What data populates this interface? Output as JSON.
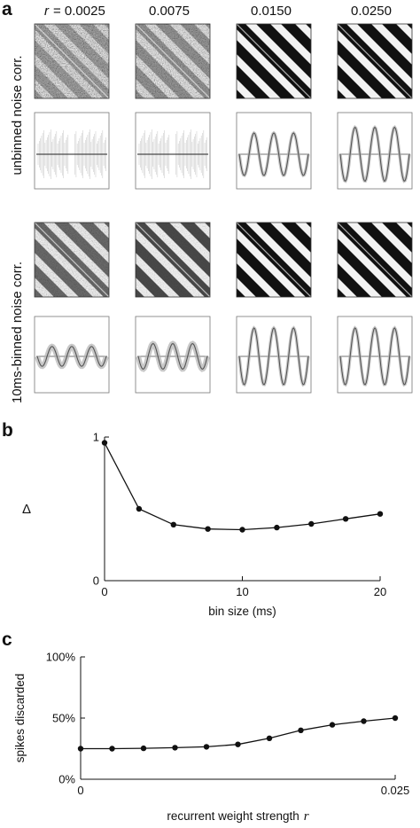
{
  "panel_a": {
    "letter": "a",
    "r_prefix": "r",
    "r_values": [
      "= 0.0025",
      "0.0075",
      "0.0150",
      "0.0250"
    ],
    "row_labels": [
      "unbinned noise corr.",
      "10ms-binned noise corr."
    ],
    "matrix_contrast": [
      [
        0.05,
        0.12,
        0.85,
        1.0
      ],
      [
        0.35,
        0.5,
        1.0,
        1.0
      ]
    ],
    "profile_amplitude": [
      [
        0.0,
        0.0,
        0.75,
        0.95
      ],
      [
        0.35,
        0.45,
        1.0,
        1.0
      ]
    ],
    "colors": {
      "matrix_light": "#f2f2f2",
      "matrix_dark": "#111111",
      "trace": "#555555",
      "trace_band": "#b0b0b0"
    }
  },
  "chart_data": [
    {
      "type": "line",
      "panel": "b",
      "x": [
        0,
        2.5,
        5,
        7.5,
        10,
        12.5,
        15,
        17.5,
        20
      ],
      "y": [
        0.96,
        0.5,
        0.39,
        0.36,
        0.355,
        0.37,
        0.395,
        0.43,
        0.465
      ],
      "xlabel": "bin size (ms)",
      "ylabel": "Δ",
      "xticks": [
        0,
        10,
        20
      ],
      "yticks": [
        0,
        1
      ],
      "xlim": [
        0,
        20
      ],
      "ylim": [
        0,
        1
      ],
      "grid": false,
      "color": "#111111"
    },
    {
      "type": "line",
      "panel": "c",
      "x": [
        0,
        0.0025,
        0.005,
        0.0075,
        0.01,
        0.0125,
        0.015,
        0.0175,
        0.02,
        0.0225,
        0.025
      ],
      "y": [
        25,
        25,
        25.3,
        25.8,
        26.5,
        28.5,
        33.5,
        40,
        44.5,
        47.5,
        50
      ],
      "xlabel": "recurrent weight strength",
      "xlabel_symbol": "r",
      "ylabel": "spikes discarded",
      "xticks": [
        "0",
        "0.025"
      ],
      "yticks": [
        "0%",
        "50%",
        "100%"
      ],
      "xlim": [
        0,
        0.025
      ],
      "ylim": [
        0,
        100
      ],
      "grid": false,
      "color": "#111111"
    }
  ]
}
